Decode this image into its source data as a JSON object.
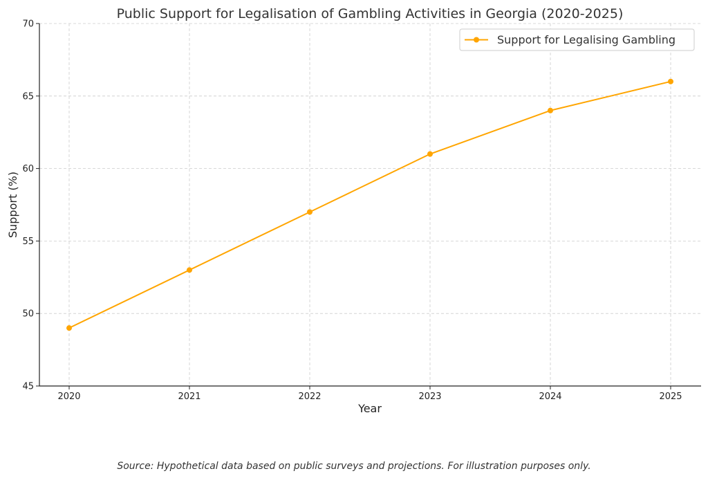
{
  "chart_data": {
    "type": "line",
    "title": "Public Support for Legalisation of Gambling Activities in Georgia (2020-2025)",
    "xlabel": "Year",
    "ylabel": "Support (%)",
    "x": [
      "2020",
      "2021",
      "2022",
      "2023",
      "2024",
      "2025"
    ],
    "series": [
      {
        "name": "Support for Legalising Gambling",
        "values": [
          49,
          53,
          57,
          61,
          64,
          66
        ],
        "color": "#FFA500",
        "marker": "circle"
      }
    ],
    "ylim": [
      45,
      70
    ],
    "yticks": [
      45,
      50,
      55,
      60,
      65,
      70
    ],
    "grid": true,
    "legend_position": "top-right"
  },
  "footer": {
    "source_note": "Source: Hypothetical data based on public surveys and projections. For illustration purposes only."
  }
}
